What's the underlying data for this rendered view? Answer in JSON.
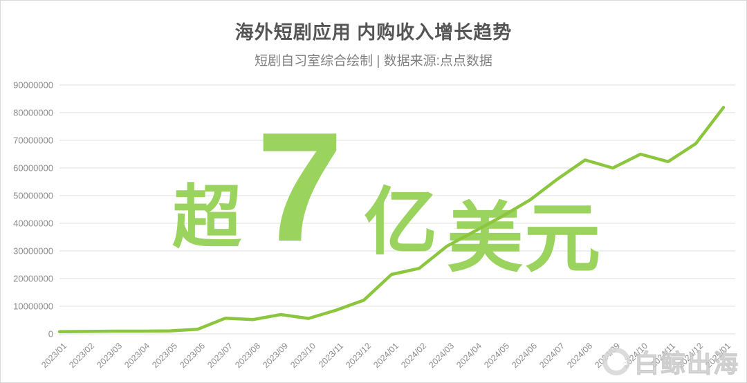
{
  "header": {
    "title": "海外短剧应用 内购收入增长趋势",
    "subtitle": "短剧自习室综合绘制 | 数据来源:点点数据"
  },
  "overlay": {
    "prefix": "超",
    "big_number": "7",
    "mid": "亿",
    "suffix": "美元",
    "color": "#9bd35f"
  },
  "corner_watermark": {
    "text": "白鲸出海"
  },
  "chart_data": {
    "type": "line",
    "title": "海外短剧应用 内购收入增长趋势",
    "xlabel": "",
    "ylabel": "",
    "categories": [
      "2023/01",
      "2023/02",
      "2023/03",
      "2023/04",
      "2023/05",
      "2023/06",
      "2023/07",
      "2023/08",
      "2023/09",
      "2023/10",
      "2023/11",
      "2023/12",
      "2024/01",
      "2024/02",
      "2024/03",
      "2024/04",
      "2024/05",
      "2024/06",
      "2024/07",
      "2024/08",
      "2024/09",
      "2024/10",
      "2024/11",
      "2024/12",
      "2025/01"
    ],
    "values": [
      800000,
      900000,
      1000000,
      1000000,
      1100000,
      1700000,
      5700000,
      5200000,
      7000000,
      5600000,
      8600000,
      12200000,
      21500000,
      23700000,
      31700000,
      37100000,
      42500000,
      48400000,
      56000000,
      62900000,
      60000000,
      65000000,
      62300000,
      68800000,
      81900000
    ],
    "ylim": [
      0,
      90000000
    ],
    "yticks": [
      0,
      10000000,
      20000000,
      30000000,
      40000000,
      50000000,
      60000000,
      70000000,
      80000000,
      90000000
    ],
    "grid": true,
    "legend": "none",
    "line_color": "#8cc63f",
    "grid_color": "#e5e5e5",
    "tick_label_color": "#8c8c8c"
  }
}
